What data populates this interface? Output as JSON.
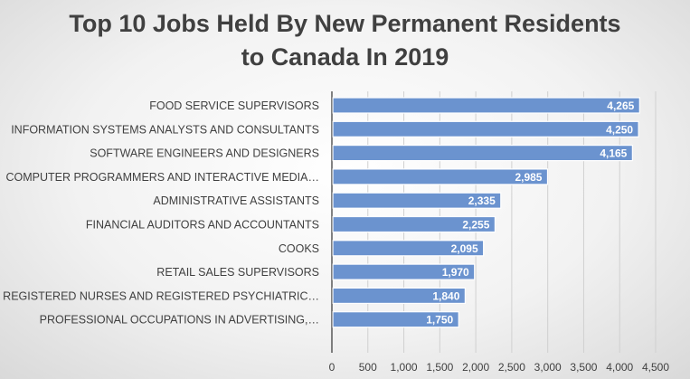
{
  "chart_data": {
    "type": "bar",
    "orientation": "horizontal",
    "title_lines": [
      "Top 10 Jobs Held By New Permanent Residents",
      "to Canada In 2019"
    ],
    "categories": [
      "FOOD SERVICE SUPERVISORS",
      "INFORMATION SYSTEMS ANALYSTS AND CONSULTANTS",
      "SOFTWARE ENGINEERS AND DESIGNERS",
      "COMPUTER PROGRAMMERS AND INTERACTIVE MEDIA…",
      "ADMINISTRATIVE ASSISTANTS",
      "FINANCIAL AUDITORS AND ACCOUNTANTS",
      "COOKS",
      "RETAIL SALES SUPERVISORS",
      "REGISTERED NURSES AND REGISTERED PSYCHIATRIC…",
      "PROFESSIONAL OCCUPATIONS IN ADVERTISING,…"
    ],
    "values": [
      4265,
      4250,
      4165,
      2985,
      2335,
      2255,
      2095,
      1970,
      1840,
      1750
    ],
    "value_labels": [
      "4,265",
      "4,250",
      "4,165",
      "2,985",
      "2,335",
      "2,255",
      "2,095",
      "1,970",
      "1,840",
      "1,750"
    ],
    "xlim": [
      0,
      4500
    ],
    "x_ticks": [
      "0",
      "500",
      "1,000",
      "1,500",
      "2,000",
      "2,500",
      "3,000",
      "3,500",
      "4,000",
      "4,500"
    ],
    "grid": "vertical",
    "legend": "none",
    "bar_color": "#6b93cf"
  }
}
